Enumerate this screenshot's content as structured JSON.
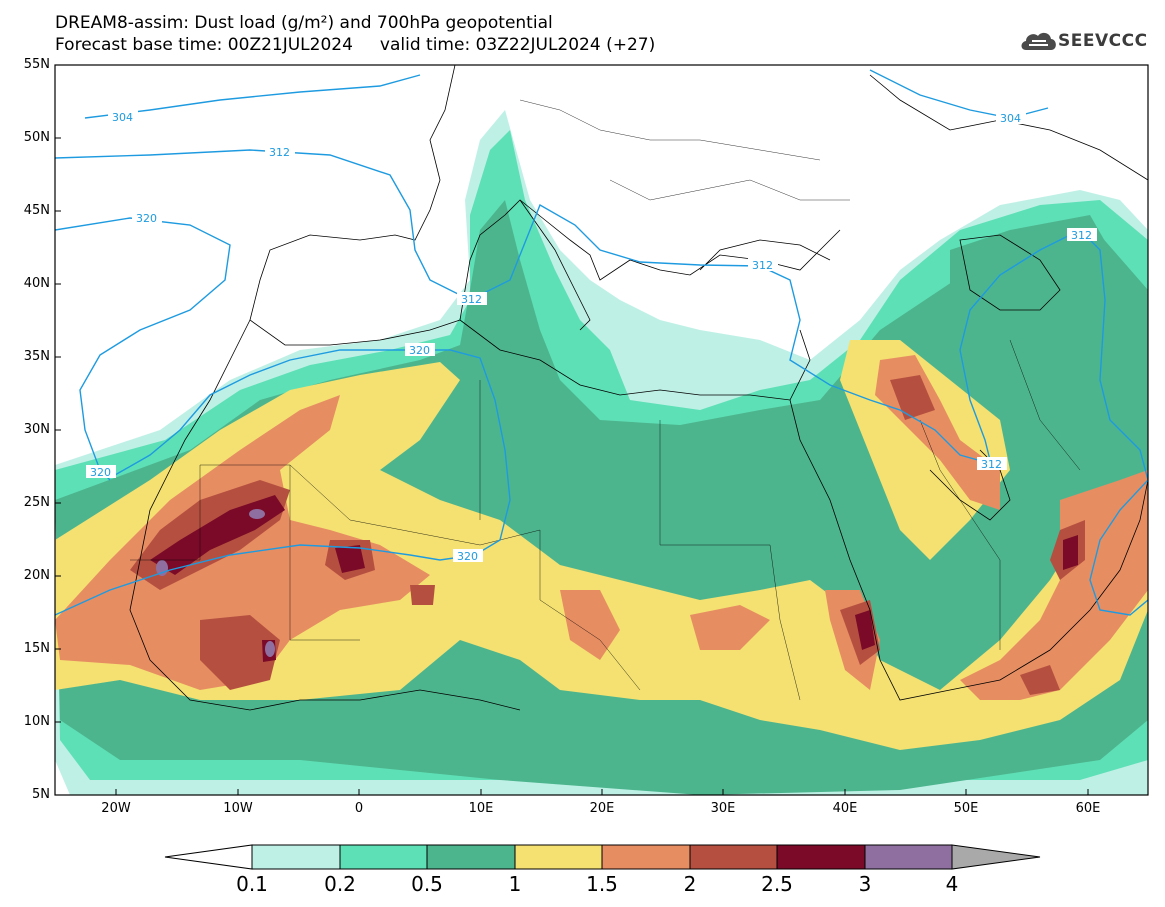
{
  "title": {
    "line1": "DREAM8-assim: Dust load (g/m²) and 700hPa geopotential",
    "line2": "Forecast base time: 00Z21JUL2024     valid time: 03Z22JUL2024 (+27)"
  },
  "logo": {
    "text": "SEEVCCC",
    "icon": "cloud-logo-icon"
  },
  "map": {
    "lat_ticks": [
      "55N",
      "50N",
      "45N",
      "40N",
      "35N",
      "30N",
      "25N",
      "20N",
      "15N",
      "10N",
      "5N"
    ],
    "lon_ticks": [
      "20W",
      "10W",
      "0",
      "10E",
      "20E",
      "30E",
      "40E",
      "50E",
      "60E"
    ],
    "geopotential_labels": [
      "304",
      "312",
      "320",
      "320",
      "320",
      "312",
      "312",
      "312",
      "304",
      "320",
      "312"
    ]
  },
  "colorbar": {
    "labels": [
      "0.1",
      "0.2",
      "0.5",
      "1",
      "1.5",
      "2",
      "2.5",
      "3",
      "4"
    ],
    "colors": [
      "#ffffff",
      "#bff0e6",
      "#5ee0b6",
      "#4db58e",
      "#f4e171",
      "#e78d62",
      "#b55040",
      "#7b0a28",
      "#8f6fa0",
      "#a9a9a9"
    ]
  }
}
